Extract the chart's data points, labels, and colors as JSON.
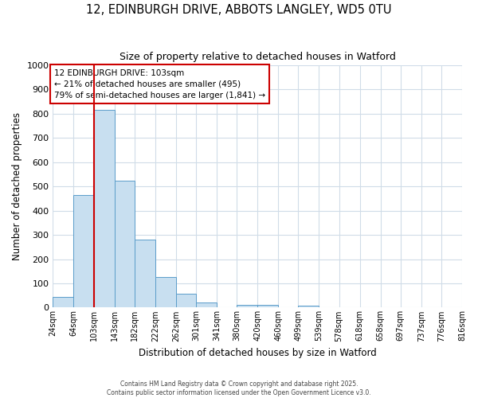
{
  "title1": "12, EDINBURGH DRIVE, ABBOTS LANGLEY, WD5 0TU",
  "title2": "Size of property relative to detached houses in Watford",
  "xlabel": "Distribution of detached houses by size in Watford",
  "ylabel": "Number of detached properties",
  "bin_labels": [
    "24sqm",
    "64sqm",
    "103sqm",
    "143sqm",
    "182sqm",
    "222sqm",
    "262sqm",
    "301sqm",
    "341sqm",
    "380sqm",
    "420sqm",
    "460sqm",
    "499sqm",
    "539sqm",
    "578sqm",
    "618sqm",
    "658sqm",
    "697sqm",
    "737sqm",
    "776sqm",
    "816sqm"
  ],
  "bar_values": [
    45,
    465,
    815,
    525,
    280,
    127,
    57,
    22,
    0,
    12,
    12,
    0,
    8,
    0,
    0,
    0,
    0,
    0,
    0,
    0
  ],
  "bin_edges": [
    24,
    64,
    103,
    143,
    182,
    222,
    262,
    301,
    341,
    380,
    420,
    460,
    499,
    539,
    578,
    618,
    658,
    697,
    737,
    776,
    816
  ],
  "bar_color": "#c8dff0",
  "bar_edge_color": "#5b9dca",
  "property_value": 103,
  "property_line_color": "#cc0000",
  "annotation_line1": "12 EDINBURGH DRIVE: 103sqm",
  "annotation_line2": "← 21% of detached houses are smaller (495)",
  "annotation_line3": "79% of semi-detached houses are larger (1,841) →",
  "annotation_box_color": "#ffffff",
  "annotation_box_edge_color": "#cc0000",
  "ylim": [
    0,
    1000
  ],
  "yticks": [
    0,
    100,
    200,
    300,
    400,
    500,
    600,
    700,
    800,
    900,
    1000
  ],
  "footer1": "Contains HM Land Registry data © Crown copyright and database right 2025.",
  "footer2": "Contains public sector information licensed under the Open Government Licence v3.0.",
  "bg_color": "#ffffff",
  "grid_color": "#d0dce8"
}
